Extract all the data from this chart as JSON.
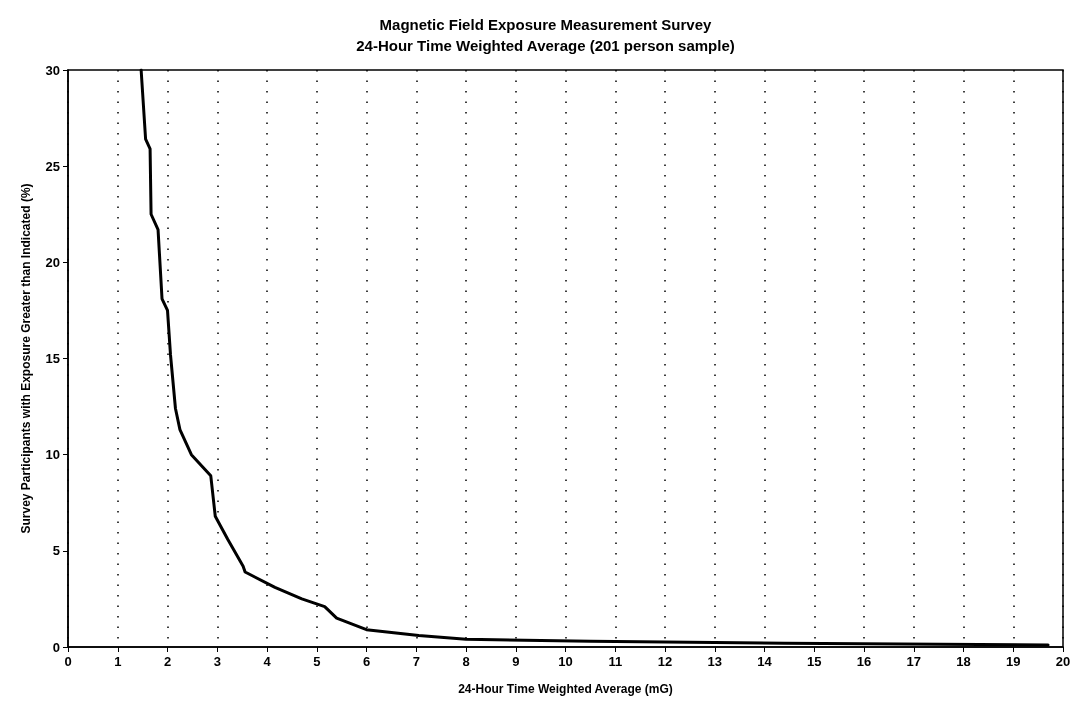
{
  "chart_data": {
    "type": "line",
    "title": "Magnetic Field Exposure Measurement Survey",
    "subtitle": "24-Hour Time Weighted Average (201 person sample)",
    "xlabel": "24-Hour Time Weighted Average (mG)",
    "ylabel": "Survey Participants with Exposure Greater than Indicated (%)",
    "x": [
      1.47,
      1.56,
      1.65,
      1.67,
      1.81,
      1.89,
      2.0,
      2.06,
      2.16,
      2.25,
      2.48,
      2.87,
      2.96,
      3.21,
      3.52,
      3.56,
      4.16,
      4.7,
      5.16,
      5.4,
      6.0,
      7.05,
      8.0,
      10.5,
      14.4,
      19.7
    ],
    "series": [
      {
        "color": "#000000",
        "values": [
          30,
          26.4,
          25.9,
          22.5,
          21.7,
          18.1,
          17.5,
          15.2,
          12.4,
          11.3,
          10.0,
          8.9,
          6.8,
          5.6,
          4.2,
          3.9,
          3.1,
          2.5,
          2.1,
          1.5,
          0.9,
          0.6,
          0.4,
          0.3,
          0.2,
          0.1
        ]
      }
    ],
    "xlim": [
      0,
      20
    ],
    "xticks": [
      0,
      1,
      2,
      3,
      4,
      5,
      6,
      7,
      8,
      9,
      10,
      11,
      12,
      13,
      14,
      15,
      16,
      17,
      18,
      19,
      20
    ],
    "ylim": [
      0,
      30
    ],
    "yticks": [
      0,
      5,
      10,
      15,
      20,
      25,
      30
    ],
    "grid": "x",
    "marker": "none",
    "line_style": "solid"
  }
}
